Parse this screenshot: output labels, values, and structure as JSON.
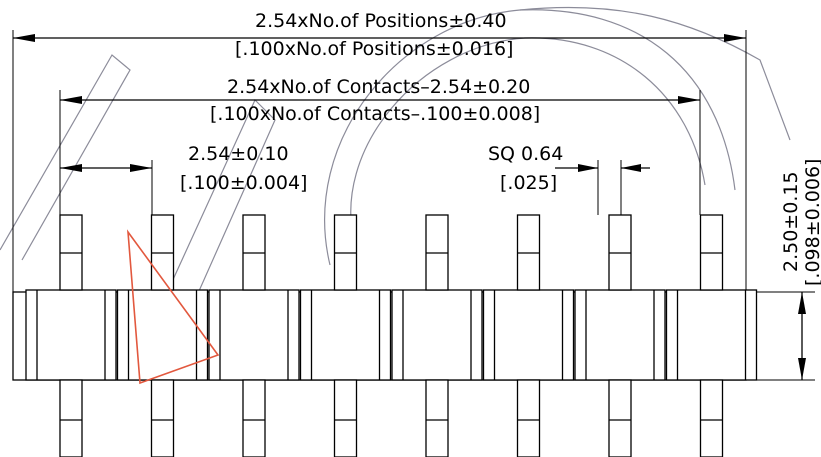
{
  "dimensions": {
    "positions_metric": "2.54xNo.of Positions±0.40",
    "positions_imperial": "[.100xNo.of Positions±0.016]",
    "contacts_metric": "2.54xNo.of Contacts–2.54±0.20",
    "contacts_imperial": "[.100xNo.of Contacts–.100±0.008]",
    "pitch_metric": "2.54±0.10",
    "pitch_imperial": "[.100±0.004]",
    "square_metric": "SQ 0.64",
    "square_imperial": "[.025]",
    "height_metric": "2.50±0.15",
    "height_imperial": "[.098±0.006]"
  },
  "drawing": {
    "pin_count": 8,
    "accent_color": "#e2583e",
    "watermark_color": "#8c8c9a"
  }
}
